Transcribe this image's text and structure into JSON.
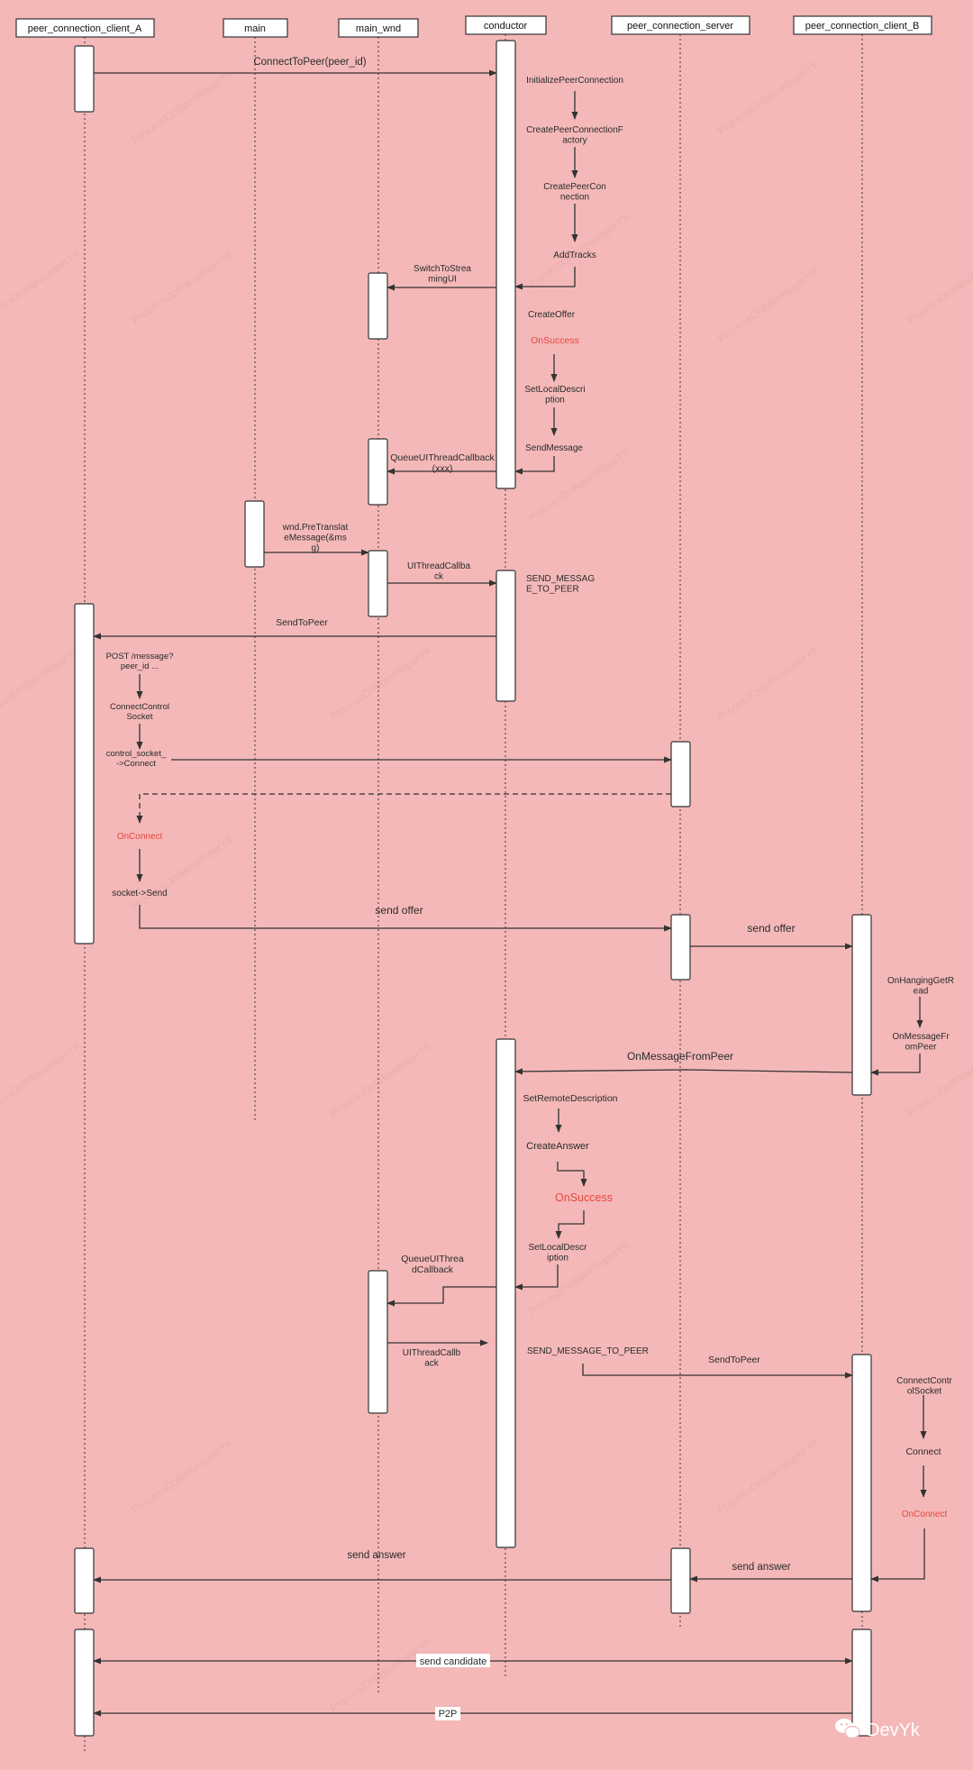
{
  "colors": {
    "background": "#f4b8b8",
    "line": "#333333",
    "box_fill": "#ffffff",
    "highlight_text": "#e8473f",
    "watermark": "#e8a3a3"
  },
  "participants": [
    {
      "id": "client_a",
      "label": "peer_connection_client_A"
    },
    {
      "id": "main",
      "label": "main"
    },
    {
      "id": "main_wnd",
      "label": "main_wnd"
    },
    {
      "id": "conductor",
      "label": "conductor"
    },
    {
      "id": "server",
      "label": "peer_connection_server"
    },
    {
      "id": "client_b",
      "label": "peer_connection_client_B"
    }
  ],
  "messages": [
    {
      "id": "m1",
      "text": "ConnectToPeer(peer_id)",
      "from": "client_a",
      "to": "conductor"
    },
    {
      "id": "m2",
      "text": "SwitchToStreamingUI",
      "from": "conductor",
      "to": "main_wnd"
    },
    {
      "id": "m3",
      "text": "QueueUIThreadCallback(xxx)",
      "from": "conductor",
      "to": "main_wnd"
    },
    {
      "id": "m4",
      "text": "wnd.PreTranslateMessage(&msg)",
      "from": "main",
      "to": "main_wnd"
    },
    {
      "id": "m5",
      "text": "UIThreadCallback",
      "from": "main_wnd",
      "to": "conductor"
    },
    {
      "id": "m6",
      "text": "SendToPeer",
      "from": "conductor",
      "to": "client_a"
    },
    {
      "id": "m7",
      "text": "",
      "from": "client_a",
      "to": "server"
    },
    {
      "id": "m8",
      "text": "",
      "from": "server",
      "to": "client_a"
    },
    {
      "id": "m9",
      "text": "send offer",
      "from": "client_a",
      "to": "server"
    },
    {
      "id": "m10",
      "text": "send offer",
      "from": "server",
      "to": "client_b"
    },
    {
      "id": "m11",
      "text": "OnMessageFromPeer",
      "from": "client_b",
      "to": "conductor"
    },
    {
      "id": "m12",
      "text": "QueueUIThreadCallback",
      "from": "conductor",
      "to": "main_wnd"
    },
    {
      "id": "m13",
      "text": "UIThreadCallback",
      "from": "main_wnd",
      "to": "conductor"
    },
    {
      "id": "m14",
      "text": "SendToPeer",
      "from": "conductor",
      "to": "client_b"
    },
    {
      "id": "m15",
      "text": "send answer",
      "from": "client_b",
      "to": "server"
    },
    {
      "id": "m16",
      "text": "send answer",
      "from": "server",
      "to": "client_a"
    },
    {
      "id": "m17",
      "text": "send candidate",
      "from": "client_a",
      "to": "client_b"
    },
    {
      "id": "m18",
      "text": "P2P",
      "from": "client_b",
      "to": "client_a"
    }
  ],
  "steps": {
    "conductor_1": [
      "InitializePeerConnection",
      "CreatePeerConnectionFactory",
      "CreatePeerConnection",
      "AddTracks",
      "CreateOffer",
      "OnSuccess",
      "SetLocalDescription",
      "SendMessage"
    ],
    "conductor_2": [
      "SEND_MESSAGE_TO_PEER"
    ],
    "client_a": [
      "POST /message?peer_id ...",
      "ConnectControlSocket",
      "control_socket_->Connect",
      "OnConnect",
      "socket->Send"
    ],
    "client_b_1": [
      "OnHangingGetRead",
      "OnMessageFromPeer"
    ],
    "conductor_3": [
      "SetRemoteDescription",
      "CreateAnswer",
      "OnSuccess",
      "SetLocalDescription",
      "SEND_MESSAGE_TO_PEER"
    ],
    "client_b_2": [
      "ConnectControlSocket",
      "Connect",
      "OnConnect"
    ]
  },
  "watermark_text": "ProcessOn8developerYK",
  "brand": {
    "logo_icon": "wechat-icon",
    "name": "DevYk"
  }
}
